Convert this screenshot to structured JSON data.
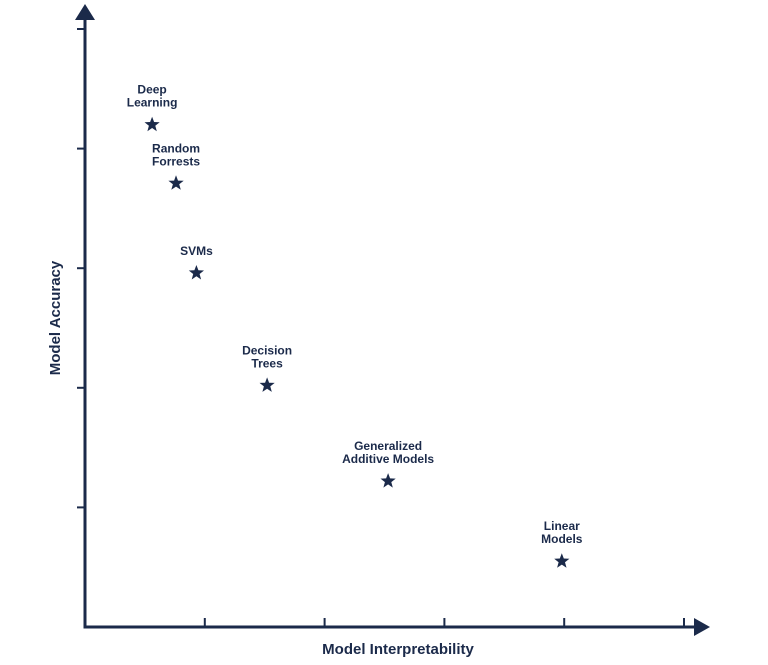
{
  "chart_data": {
    "type": "scatter",
    "title": "",
    "xlabel": "Model Interpretability",
    "ylabel": "Model Accuracy",
    "xlim": [
      0,
      5
    ],
    "ylim": [
      0,
      5
    ],
    "x_ticks": [
      1,
      2,
      3,
      4,
      5
    ],
    "y_ticks": [
      1,
      2,
      3,
      4,
      5
    ],
    "tick_labels_shown": false,
    "grid": false,
    "marker": "star",
    "color": "#1b2a4a",
    "points": [
      {
        "label": "Deep Learning",
        "lines": [
          "Deep",
          "Learning"
        ],
        "x": 0.56,
        "y": 4.2
      },
      {
        "label": "Random Forrests",
        "lines": [
          "Random",
          "Forrests"
        ],
        "x": 0.76,
        "y": 3.71
      },
      {
        "label": "SVMs",
        "lines": [
          "SVMs"
        ],
        "x": 0.93,
        "y": 2.96
      },
      {
        "label": "Decision Trees",
        "lines": [
          "Decision",
          "Trees"
        ],
        "x": 1.52,
        "y": 2.02
      },
      {
        "label": "Generalized Additive Models",
        "lines": [
          "Generalized",
          "Additive Models"
        ],
        "x": 2.53,
        "y": 1.22
      },
      {
        "label": "Linear Models",
        "lines": [
          "Linear",
          "Models"
        ],
        "x": 3.98,
        "y": 0.55
      }
    ]
  }
}
